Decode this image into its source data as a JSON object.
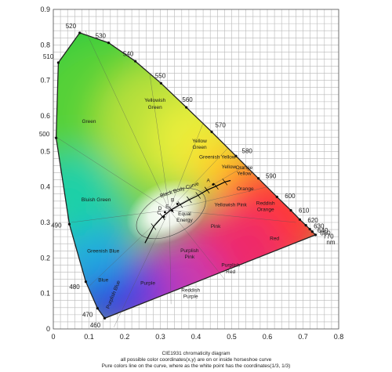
{
  "chart_data": {
    "type": "scatter",
    "xlim": [
      0,
      0.8
    ],
    "ylim": [
      0,
      0.9
    ],
    "x_ticks": [
      "0",
      "0.1",
      "0.2",
      "0.3",
      "0.4",
      "0.5",
      "0.6",
      "0.7",
      "0.8"
    ],
    "y_ticks": [
      "0",
      "0.1",
      "0.2",
      "0.3",
      "0.4",
      "0.5",
      "0.6",
      "0.7",
      "0.8",
      "0.9"
    ],
    "grid": true,
    "spectral_locus": [
      {
        "label": "460",
        "x": 0.144,
        "y": 0.03
      },
      {
        "label": "470",
        "x": 0.124,
        "y": 0.058
      },
      {
        "label": "480",
        "x": 0.091,
        "y": 0.133
      },
      {
        "label": "490",
        "x": 0.045,
        "y": 0.295
      },
      {
        "label": "500",
        "x": 0.008,
        "y": 0.538
      },
      {
        "label": "510",
        "x": 0.014,
        "y": 0.75
      },
      {
        "label": "520",
        "x": 0.074,
        "y": 0.834
      },
      {
        "label": "530",
        "x": 0.155,
        "y": 0.806
      },
      {
        "label": "540",
        "x": 0.23,
        "y": 0.754
      },
      {
        "label": "550",
        "x": 0.302,
        "y": 0.692
      },
      {
        "label": "560",
        "x": 0.373,
        "y": 0.624
      },
      {
        "label": "570",
        "x": 0.444,
        "y": 0.555
      },
      {
        "label": "580",
        "x": 0.512,
        "y": 0.487
      },
      {
        "label": "590",
        "x": 0.575,
        "y": 0.424
      },
      {
        "label": "600",
        "x": 0.627,
        "y": 0.372
      },
      {
        "label": "610",
        "x": 0.666,
        "y": 0.334
      },
      {
        "label": "620",
        "x": 0.691,
        "y": 0.308
      },
      {
        "label": "630",
        "x": 0.708,
        "y": 0.292
      },
      {
        "label": "640",
        "x": 0.719,
        "y": 0.281
      },
      {
        "label": "650",
        "x": 0.726,
        "y": 0.274
      },
      {
        "label": "770",
        "x": 0.735,
        "y": 0.265
      }
    ],
    "wavelength_unit": "nm",
    "blackbody_curve": {
      "label": "Black Body Curve",
      "points": [
        [
          0.257,
          0.242
        ],
        [
          0.281,
          0.288
        ],
        [
          0.306,
          0.316
        ],
        [
          0.331,
          0.336
        ],
        [
          0.356,
          0.35
        ],
        [
          0.381,
          0.364
        ],
        [
          0.406,
          0.376
        ],
        [
          0.431,
          0.391
        ],
        [
          0.456,
          0.402
        ],
        [
          0.481,
          0.414
        ],
        [
          0.497,
          0.418
        ]
      ]
    },
    "illuminants": [
      {
        "label": "A",
        "x": 0.448,
        "y": 0.407
      },
      {
        "label": "B",
        "x": 0.348,
        "y": 0.352
      },
      {
        "label": "C",
        "x": 0.31,
        "y": 0.316
      },
      {
        "label": "D",
        "x": 0.313,
        "y": 0.329
      },
      {
        "label": "E",
        "x": 0.333,
        "y": 0.333
      }
    ],
    "region_labels": [
      {
        "text": "Green",
        "x": 0.1,
        "y": 0.58
      },
      {
        "text": "Yellowish",
        "x": 0.285,
        "y": 0.64
      },
      {
        "text": "Green",
        "x": 0.285,
        "y": 0.62
      },
      {
        "text": "Yellow",
        "x": 0.41,
        "y": 0.525
      },
      {
        "text": "Green",
        "x": 0.41,
        "y": 0.507
      },
      {
        "text": "Greenish Yellow",
        "x": 0.46,
        "y": 0.48
      },
      {
        "text": "Yellow",
        "x": 0.492,
        "y": 0.452
      },
      {
        "text": "Orange",
        "x": 0.535,
        "y": 0.45
      },
      {
        "text": "Yellow",
        "x": 0.535,
        "y": 0.433
      },
      {
        "text": "Orange",
        "x": 0.538,
        "y": 0.39
      },
      {
        "text": "Bluish Green",
        "x": 0.12,
        "y": 0.36
      },
      {
        "text": "Yellowish Pink",
        "x": 0.497,
        "y": 0.345
      },
      {
        "text": "Reddish",
        "x": 0.595,
        "y": 0.35
      },
      {
        "text": "Orange",
        "x": 0.595,
        "y": 0.332
      },
      {
        "text": "Equal",
        "x": 0.368,
        "y": 0.32
      },
      {
        "text": "Energy",
        "x": 0.368,
        "y": 0.302
      },
      {
        "text": "Pink",
        "x": 0.455,
        "y": 0.285
      },
      {
        "text": "Red",
        "x": 0.62,
        "y": 0.25
      },
      {
        "text": "Greenish Blue",
        "x": 0.14,
        "y": 0.215
      },
      {
        "text": "Purplish",
        "x": 0.382,
        "y": 0.216
      },
      {
        "text": "Pink",
        "x": 0.382,
        "y": 0.198
      },
      {
        "text": "Purplish",
        "x": 0.497,
        "y": 0.175
      },
      {
        "text": "Red",
        "x": 0.497,
        "y": 0.157
      },
      {
        "text": "Blue",
        "x": 0.14,
        "y": 0.133
      },
      {
        "text": "Purple",
        "x": 0.265,
        "y": 0.125
      },
      {
        "text": "Reddish",
        "x": 0.385,
        "y": 0.105
      },
      {
        "text": "Purple",
        "x": 0.385,
        "y": 0.087
      }
    ],
    "rotated_label": {
      "text": "Purplish Blue",
      "x": 0.172,
      "y": 0.095
    },
    "caption": [
      "CIE1931 chromaticity diagram",
      "all possible color coordinates(x,y) are on or inside horseshoe curve",
      "Pure colors line on the curve, where as the white point has the coordinates(1/3,  1/3)"
    ]
  }
}
